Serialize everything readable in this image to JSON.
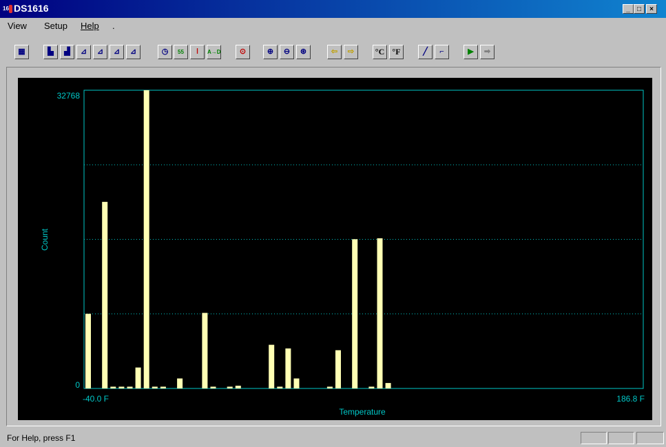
{
  "window": {
    "title": "DS1616"
  },
  "menu": [
    "View",
    "Setup",
    "Help",
    "."
  ],
  "toolbar": {
    "icons": [
      "mission-grid",
      "histogram",
      "histogram-alt",
      "graph-1",
      "graph-2",
      "graph-3",
      "graph-4",
      "clock",
      "alarm-55",
      "thermometer",
      "ad-convert",
      "record",
      "zoom-in",
      "zoom-out",
      "zoom-reset",
      "arrow-left",
      "arrow-right",
      "celsius",
      "fahrenheit",
      "line",
      "step",
      "export",
      "export-disabled"
    ],
    "celsius_label": "°C",
    "fahrenheit_label": "°F"
  },
  "colors": {
    "bar": "#ffffb4",
    "axis": "#00c8c8",
    "background": "#000000"
  },
  "status": {
    "help_text": "For Help, press F1"
  },
  "chart_data": {
    "type": "bar",
    "xlabel": "Temperature",
    "ylabel": "Count",
    "x_min_label": "-40.0 F",
    "x_max_label": "186.8 F",
    "y_max_label": "32768",
    "y_min_label": "0",
    "ylim": [
      0,
      32768
    ],
    "grid": true,
    "values": [
      8200,
      0,
      20500,
      200,
      200,
      200,
      2300,
      32768,
      200,
      200,
      0,
      1100,
      0,
      0,
      8300,
      200,
      0,
      200,
      300,
      0,
      0,
      0,
      4800,
      200,
      4400,
      1100,
      0,
      0,
      0,
      200,
      4200,
      0,
      16400,
      0,
      200,
      16500,
      600
    ]
  }
}
